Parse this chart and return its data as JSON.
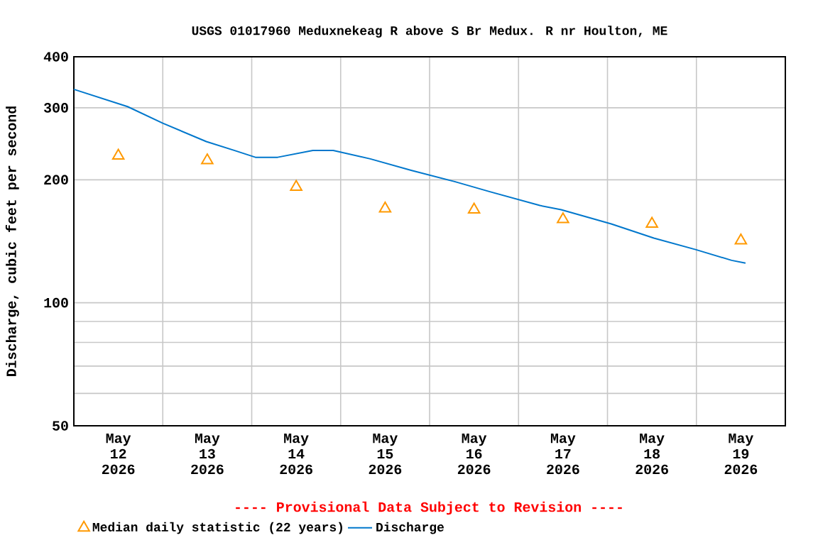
{
  "chart_data": {
    "type": "line",
    "title": "USGS 01017960 Meduxnekeag R above S Br Medux. R nr Houlton, ME",
    "ylabel": "Discharge, cubic feet per second",
    "annotations": [
      "---- Provisional Data Subject to Revision ----"
    ],
    "log": "y",
    "grid": true,
    "legend": "bottom",
    "xlim": [
      "2026-05-12T00:00",
      "2026-05-20T00:00"
    ],
    "xticks": [
      {
        "value": "2026-05-12T12:00",
        "label": "May 12 2026"
      },
      {
        "value": "2026-05-13T12:00",
        "label": "May 13 2026"
      },
      {
        "value": "2026-05-14T12:00",
        "label": "May 14 2026"
      },
      {
        "value": "2026-05-15T12:00",
        "label": "May 15 2026"
      },
      {
        "value": "2026-05-16T12:00",
        "label": "May 16 2026"
      },
      {
        "value": "2026-05-17T12:00",
        "label": "May 17 2026"
      },
      {
        "value": "2026-05-18T12:00",
        "label": "May 18 2026"
      },
      {
        "value": "2026-05-19T12:00",
        "label": "May 19 2026"
      },
      {
        "value": "2026-05-13T00:00",
        "label": null
      },
      {
        "value": "2026-05-14T00:00",
        "label": null
      },
      {
        "value": "2026-05-15T00:00",
        "label": null
      },
      {
        "value": "2026-05-16T00:00",
        "label": null
      },
      {
        "value": "2026-05-17T00:00",
        "label": null
      },
      {
        "value": "2026-05-18T00:00",
        "label": null
      },
      {
        "value": "2026-05-19T00:00",
        "label": null
      }
    ],
    "ylim": [
      50,
      400
    ],
    "yticks": [
      50,
      100,
      200,
      300,
      400,
      {
        "value": 60,
        "label": null
      },
      {
        "value": 70,
        "label": null
      },
      {
        "value": 80,
        "label": null
      },
      {
        "value": 90,
        "label": null
      }
    ],
    "series": [
      {
        "name": "Median daily statistic (22 years)",
        "type": "scatter",
        "marker": "triangle",
        "color": "#ff9900",
        "x": [
          "2026-05-12T12:00",
          "2026-05-13T12:00",
          "2026-05-14T12:00",
          "2026-05-15T12:00",
          "2026-05-16T12:00",
          "2026-05-17T12:00",
          "2026-05-18T12:00",
          "2026-05-19T12:00"
        ],
        "values": [
          229,
          223,
          192,
          170,
          169,
          160,
          156,
          142
        ]
      },
      {
        "name": "Discharge",
        "color": "#0077cc",
        "x": [
          "2026-05-12T00:00",
          "2026-05-12T14:30",
          "2026-05-13T00:00",
          "2026-05-13T11:45",
          "2026-05-13T19:15",
          "2026-05-14T01:00",
          "2026-05-14T07:00",
          "2026-05-14T16:30",
          "2026-05-14T22:00",
          "2026-05-15T08:00",
          "2026-05-15T19:00",
          "2026-05-16T06:45",
          "2026-05-16T16:15",
          "2026-05-17T05:45",
          "2026-05-17T11:30",
          "2026-05-18T01:00",
          "2026-05-18T12:30",
          "2026-05-18T23:45",
          "2026-05-19T09:30",
          "2026-05-19T13:15"
        ],
        "values": [
          333,
          302,
          275,
          248,
          236,
          227,
          227,
          236,
          236,
          225,
          211,
          198,
          187,
          173,
          169,
          156,
          144,
          135,
          127,
          125
        ]
      }
    ]
  }
}
